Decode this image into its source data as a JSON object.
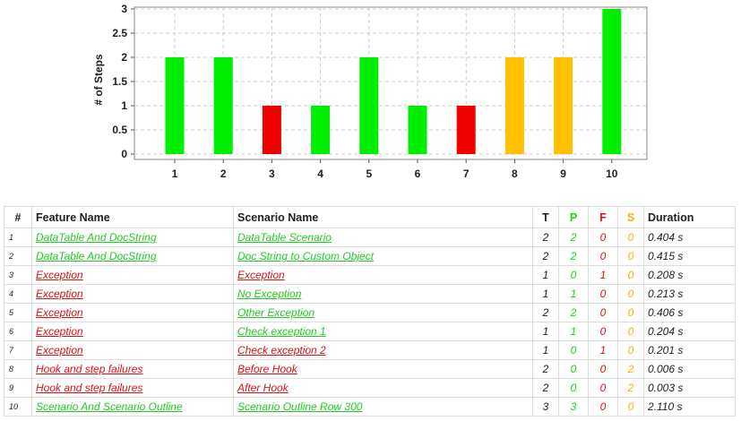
{
  "colors": {
    "passed": "#00ee00",
    "failed": "#ee0000",
    "skipped": "#ffc000"
  },
  "chart_data": {
    "type": "bar",
    "ylabel": "# of Steps",
    "xlabel": "",
    "ylim": [
      0,
      3
    ],
    "yticks": [
      "0",
      "0.5",
      "1",
      "1.5",
      "2",
      "2.5",
      "3"
    ],
    "grid": true,
    "categories": [
      "1",
      "2",
      "3",
      "4",
      "5",
      "6",
      "7",
      "8",
      "9",
      "10"
    ],
    "values": [
      2,
      2,
      1,
      1,
      2,
      1,
      1,
      2,
      2,
      3
    ],
    "statuses": [
      "passed",
      "passed",
      "failed",
      "passed",
      "passed",
      "passed",
      "failed",
      "skipped",
      "skipped",
      "passed"
    ]
  },
  "table": {
    "headers": {
      "index": "#",
      "feature": "Feature Name",
      "scenario": "Scenario Name",
      "total": "T",
      "passed": "P",
      "failed": "F",
      "skipped": "S",
      "duration": "Duration"
    },
    "rows": [
      {
        "index": "1",
        "feature": "DataTable And DocString",
        "feature_status": "pass",
        "scenario": "DataTable Scenario",
        "scenario_status": "pass",
        "total": "2",
        "passed": "2",
        "failed": "0",
        "skipped": "0",
        "duration": "0.404 s"
      },
      {
        "index": "2",
        "feature": "DataTable And DocString",
        "feature_status": "pass",
        "scenario": "Doc String to Custom Object",
        "scenario_status": "pass",
        "total": "2",
        "passed": "2",
        "failed": "0",
        "skipped": "0",
        "duration": "0.415 s"
      },
      {
        "index": "3",
        "feature": "Exception",
        "feature_status": "fail",
        "scenario": "Exception",
        "scenario_status": "fail",
        "total": "1",
        "passed": "0",
        "failed": "1",
        "skipped": "0",
        "duration": "0.208 s"
      },
      {
        "index": "4",
        "feature": "Exception",
        "feature_status": "fail",
        "scenario": "No Exception",
        "scenario_status": "pass",
        "total": "1",
        "passed": "1",
        "failed": "0",
        "skipped": "0",
        "duration": "0.213 s"
      },
      {
        "index": "5",
        "feature": "Exception",
        "feature_status": "fail",
        "scenario": "Other Exception",
        "scenario_status": "pass",
        "total": "2",
        "passed": "2",
        "failed": "0",
        "skipped": "0",
        "duration": "0.406 s"
      },
      {
        "index": "6",
        "feature": "Exception",
        "feature_status": "fail",
        "scenario": "Check exception 1",
        "scenario_status": "pass",
        "total": "1",
        "passed": "1",
        "failed": "0",
        "skipped": "0",
        "duration": "0.204 s"
      },
      {
        "index": "7",
        "feature": "Exception",
        "feature_status": "fail",
        "scenario": "Check exception 2",
        "scenario_status": "fail",
        "total": "1",
        "passed": "0",
        "failed": "1",
        "skipped": "0",
        "duration": "0.201 s"
      },
      {
        "index": "8",
        "feature": "Hook and step failures",
        "feature_status": "fail",
        "scenario": "Before Hook",
        "scenario_status": "fail",
        "total": "2",
        "passed": "0",
        "failed": "0",
        "skipped": "2",
        "duration": "0.006 s"
      },
      {
        "index": "9",
        "feature": "Hook and step failures",
        "feature_status": "fail",
        "scenario": "After Hook",
        "scenario_status": "fail",
        "total": "2",
        "passed": "0",
        "failed": "0",
        "skipped": "2",
        "duration": "0.003 s"
      },
      {
        "index": "10",
        "feature": "Scenario And Scenario Outline",
        "feature_status": "pass",
        "scenario": "Scenario Outline Row 300",
        "scenario_status": "pass",
        "total": "3",
        "passed": "3",
        "failed": "0",
        "skipped": "0",
        "duration": "2.110 s"
      }
    ]
  }
}
